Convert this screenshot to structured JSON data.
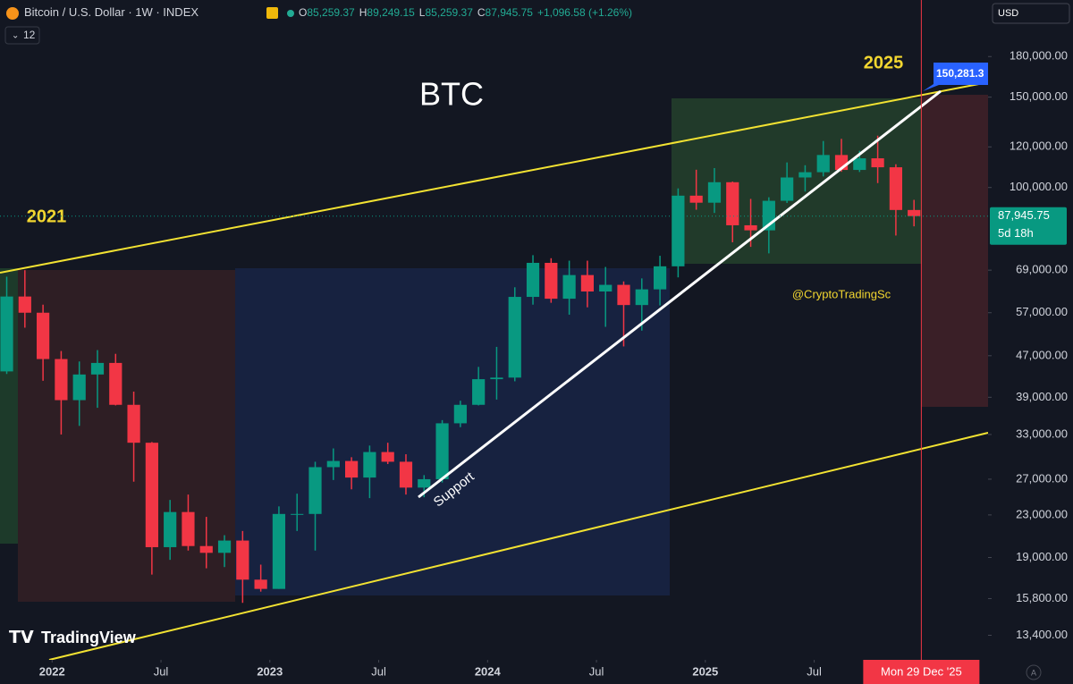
{
  "chart_data": {
    "type": "candlestick",
    "symbol": "Bitcoin / U.S. Dollar · 1W · INDEX",
    "ohlc_header": [
      {
        "key": "O",
        "value": "85,259.37"
      },
      {
        "key": "H",
        "value": "89,249.15"
      },
      {
        "key": "L",
        "value": "85,259.37"
      },
      {
        "key": "C",
        "value": "87,945.75"
      }
    ],
    "change": "+1,096.58 (+1.26%)",
    "indicator_count": "12",
    "currency": "USD",
    "title": "BTC",
    "annotations": {
      "left_year": "2021",
      "right_year": "2025",
      "support": "Support",
      "author": "@CryptoTradingSc",
      "target": "150,281.3"
    },
    "log_scale": true,
    "up_color": "#089981",
    "down_color": "#f23645",
    "x": [
      "2021-10",
      "2021-11",
      "2021-12",
      "2022-01",
      "2022-02",
      "2022-03",
      "2022-04",
      "2022-05",
      "2022-06",
      "2022-07",
      "2022-08",
      "2022-09",
      "2022-10",
      "2022-11",
      "2022-12",
      "2023-01",
      "2023-02",
      "2023-03",
      "2023-04",
      "2023-05",
      "2023-06",
      "2023-07",
      "2023-08",
      "2023-09",
      "2023-10",
      "2023-11",
      "2023-12",
      "2024-01",
      "2024-02",
      "2024-03",
      "2024-04",
      "2024-05",
      "2024-06",
      "2024-07",
      "2024-08",
      "2024-09",
      "2024-10",
      "2024-11",
      "2024-12",
      "2025-01",
      "2025-02",
      "2025-03",
      "2025-04",
      "2025-05",
      "2025-06",
      "2025-07",
      "2025-08",
      "2025-09",
      "2025-10",
      "2025-11",
      "2025-12"
    ],
    "open": [
      43800,
      61300,
      57000,
      46300,
      38500,
      43200,
      45500,
      37700,
      31800,
      19900,
      23300,
      20000,
      19400,
      20500,
      17200,
      16500,
      23100,
      23100,
      28500,
      29300,
      27200,
      30500,
      29200,
      26000,
      27000,
      34700,
      37700,
      42300,
      42600,
      61200,
      71300,
      60700,
      67500,
      62700,
      64600,
      59000,
      63300,
      70200,
      96400,
      93400,
      102400,
      84400,
      82500,
      94200,
      104600,
      107100,
      115700,
      108200,
      114000,
      109500,
      90400
    ],
    "high": [
      67000,
      69000,
      59100,
      48000,
      45800,
      48200,
      47400,
      40000,
      31900,
      24600,
      25200,
      22800,
      21000,
      21400,
      18400,
      23900,
      25300,
      29200,
      31000,
      29800,
      31400,
      31800,
      30200,
      27500,
      35200,
      38400,
      44700,
      48900,
      63900,
      73800,
      72800,
      72000,
      72000,
      70000,
      65600,
      66500,
      73600,
      99600,
      108300,
      109100,
      102700,
      95000,
      95700,
      111900,
      110500,
      123200,
      124400,
      117900,
      126200,
      111000,
      94600
    ],
    "low": [
      43300,
      53300,
      42000,
      33000,
      34300,
      37200,
      37600,
      26700,
      17600,
      18800,
      19600,
      18100,
      18200,
      15500,
      16300,
      16500,
      21400,
      19600,
      26900,
      25800,
      24800,
      28900,
      25200,
      24900,
      26600,
      34100,
      37600,
      38600,
      41900,
      59100,
      59600,
      56500,
      58400,
      53500,
      49000,
      52600,
      58900,
      66800,
      90500,
      89200,
      78200,
      76600,
      74400,
      93300,
      98200,
      105100,
      107300,
      107200,
      102000,
      80600,
      84000
    ],
    "close": [
      61300,
      57000,
      46300,
      38500,
      43200,
      45500,
      37700,
      31800,
      19900,
      23300,
      20000,
      19400,
      20500,
      17200,
      16500,
      23100,
      23100,
      28500,
      29300,
      27200,
      30500,
      29200,
      26000,
      27000,
      34700,
      37700,
      42300,
      42600,
      61200,
      71300,
      60700,
      67500,
      62700,
      64600,
      59000,
      63300,
      70200,
      96400,
      93400,
      102400,
      84400,
      82500,
      94200,
      104600,
      107100,
      115700,
      108200,
      114000,
      109500,
      90400,
      87945.75
    ],
    "last_price": {
      "value": 87945.75,
      "label": "87,945.75",
      "countdown": "5d 18h"
    },
    "cursor": {
      "date": "2025-12-29",
      "label": "Mon 29 Dec '25"
    },
    "xlim": [
      "2021-10-05",
      "2026-04-19"
    ],
    "xticks": [
      {
        "value": "2022-01-01",
        "label": "2022"
      },
      {
        "value": "2022-07-01",
        "label": "Jul"
      },
      {
        "value": "2023-01-01",
        "label": "2023"
      },
      {
        "value": "2023-07-01",
        "label": "Jul"
      },
      {
        "value": "2024-01-01",
        "label": "2024"
      },
      {
        "value": "2024-07-01",
        "label": "Jul"
      },
      {
        "value": "2025-01-01",
        "label": "2025"
      },
      {
        "value": "2025-07-01",
        "label": "Jul"
      }
    ],
    "ylim": [
      12000,
      232000
    ],
    "yticks": [
      {
        "value": 180000,
        "label": "180,000.00"
      },
      {
        "value": 150000,
        "label": "150,000.00"
      },
      {
        "value": 120000,
        "label": "120,000.00"
      },
      {
        "value": 100000,
        "label": "100,000.00"
      },
      {
        "value": 69000,
        "label": "69,000.00"
      },
      {
        "value": 57000,
        "label": "57,000.00"
      },
      {
        "value": 47000,
        "label": "47,000.00"
      },
      {
        "value": 39000,
        "label": "39,000.00"
      },
      {
        "value": 33000,
        "label": "33,000.00"
      },
      {
        "value": 27000,
        "label": "27,000.00"
      },
      {
        "value": 23000,
        "label": "23,000.00"
      },
      {
        "value": 19000,
        "label": "19,000.00"
      },
      {
        "value": 15800,
        "label": "15,800.00"
      },
      {
        "value": 13400,
        "label": "13,400.00"
      }
    ],
    "brand": "TradingView"
  }
}
